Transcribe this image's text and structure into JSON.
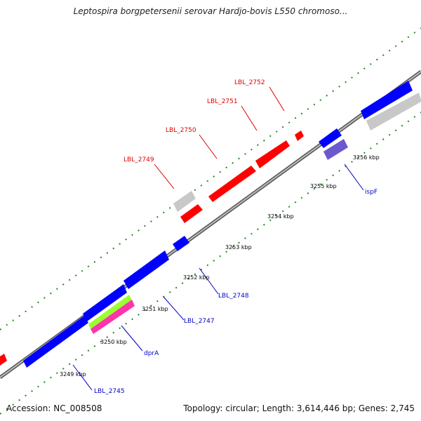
{
  "title": "Leptospira borgpetersenii serovar Hardjo-bovis L550 chromoso...",
  "footer": {
    "accession": "Accession: NC_008508",
    "summary": "Topology: circular; Length: 3,614,446 bp; Genes: 2,745"
  },
  "colors": {
    "forward_gene": "#ff0000",
    "reverse_gene": "#0000ff",
    "pseudo_gene": "#c8c8c8",
    "violet_gene": "#6a5acd",
    "green_gene": "#9aff33",
    "pink_gene": "#ff33aa",
    "backbone": "#888888",
    "tick": "#228822",
    "forward_label": "#dd0000",
    "reverse_label": "#0000cc"
  },
  "scale": {
    "ticks_kbp": [
      "3249 kbp",
      "3250 kbp",
      "3251 kbp",
      "3252 kbp",
      "3253 kbp",
      "3254 kbp",
      "3255 kbp",
      "3256 kbp"
    ]
  },
  "labels": {
    "forward": [
      "LBL_2749",
      "LBL_2750",
      "LBL_2751",
      "LBL_2752"
    ],
    "reverse": [
      "LBL_2745",
      "dprA",
      "LBL_2747",
      "LBL_2748",
      "ispF"
    ]
  }
}
